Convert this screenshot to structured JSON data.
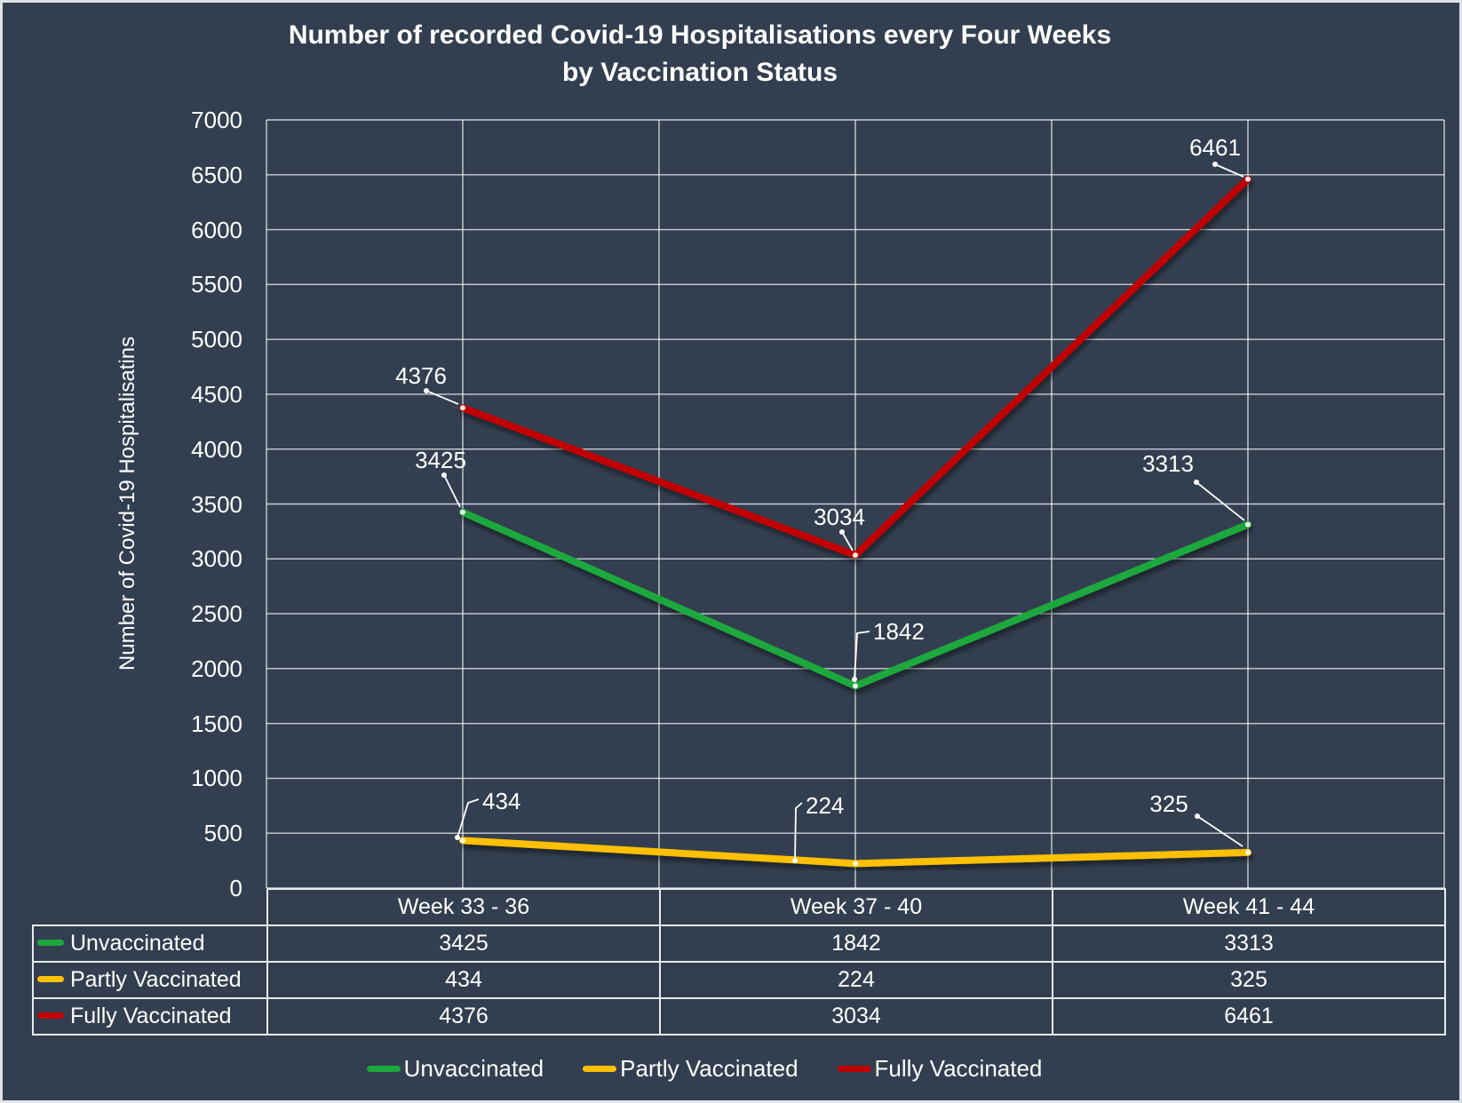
{
  "title": {
    "line1": "Number of recorded Covid-19 Hospitalisations every Four Weeks",
    "line2": "by Vaccination Status"
  },
  "colors": {
    "background": "#333F50",
    "gridline": "#FFFFFF",
    "frame_border": "#DFE2E7",
    "table_border": "#E7EAEE",
    "text": "#FFFFFF"
  },
  "chart_data": {
    "type": "line",
    "title": "Number of recorded Covid-19 Hospitalisations every Four Weeks by Vaccination Status",
    "xlabel": "",
    "ylabel": "Number of Covid-19 Hospitalisatins",
    "categories": [
      "Week 33 - 36",
      "Week 37 - 40",
      "Week 41 - 44"
    ],
    "series": [
      {
        "name": "Unvaccinated",
        "color": "#1BA83C",
        "values": [
          3425,
          1842,
          3313
        ]
      },
      {
        "name": "Partly Vaccinated",
        "color": "#FFC000",
        "values": [
          434,
          224,
          325
        ]
      },
      {
        "name": "Fully Vaccinated",
        "color": "#C00000",
        "values": [
          4376,
          3034,
          6461
        ]
      }
    ],
    "ylim": [
      0,
      7000
    ],
    "ytick_step": 500,
    "grid": true,
    "data_labels": true,
    "legend_position": "bottom"
  }
}
